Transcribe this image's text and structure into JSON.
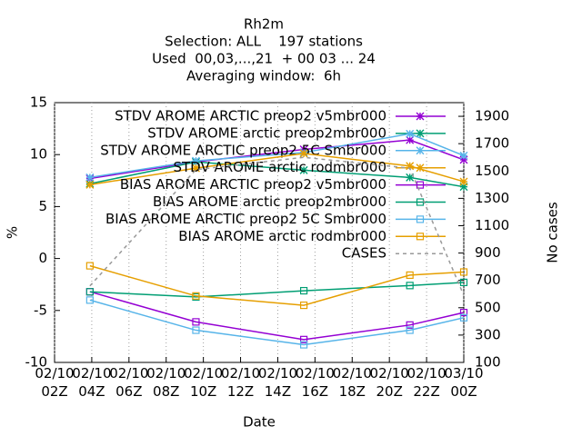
{
  "chart_data": {
    "type": "line",
    "title": [
      "Rh2m",
      "Selection: ALL    197 stations",
      "Used  00,03,...,21  + 00 03 ... 24",
      "Averaging window:  6h"
    ],
    "xlabel": "Date",
    "ylabel": "%",
    "y2label": "No cases",
    "x": [
      3.9,
      9.6,
      15.4,
      21.1,
      24
    ],
    "xlim": [
      2,
      24
    ],
    "xticks": [
      {
        "value": 2,
        "label": "02/10\n02Z"
      },
      {
        "value": 4,
        "label": "02/10\n04Z"
      },
      {
        "value": 6,
        "label": "02/10\n06Z"
      },
      {
        "value": 8,
        "label": "02/10\n08Z"
      },
      {
        "value": 10,
        "label": "02/10\n10Z"
      },
      {
        "value": 12,
        "label": "02/10\n12Z"
      },
      {
        "value": 14,
        "label": "02/10\n14Z"
      },
      {
        "value": 16,
        "label": "02/10\n16Z"
      },
      {
        "value": 18,
        "label": "02/10\n18Z"
      },
      {
        "value": 20,
        "label": "02/10\n20Z"
      },
      {
        "value": 22,
        "label": "02/10\n22Z"
      },
      {
        "value": 24,
        "label": "03/10\n00Z"
      }
    ],
    "ylim": [
      -10,
      15
    ],
    "yticks": [
      -10,
      -5,
      0,
      5,
      10,
      15
    ],
    "y2lim": [
      100,
      2000
    ],
    "y2ticks": [
      100,
      300,
      500,
      700,
      900,
      1100,
      1300,
      1500,
      1700,
      1900
    ],
    "grid": "x",
    "series": [
      {
        "name": "STDV AROME ARCTIC preop2 v5mbr000",
        "color": "#9400d3",
        "marker": "star",
        "values": [
          7.7,
          9.3,
          10.5,
          11.4,
          9.5
        ]
      },
      {
        "name": "STDV AROME arctic preop2mbr000",
        "color": "#009e73",
        "marker": "star",
        "values": [
          7.2,
          9.3,
          8.5,
          7.8,
          6.9
        ]
      },
      {
        "name": "STDV AROME ARCTIC preop2 5C Smbr000",
        "color": "#56b4e9",
        "marker": "star",
        "values": [
          7.8,
          9.4,
          10.2,
          12.0,
          9.9
        ]
      },
      {
        "name": "STDV AROME arctic rodmbr000",
        "color": "#e69f00",
        "marker": "star",
        "values": [
          7.1,
          8.7,
          10.1,
          8.9,
          7.4
        ]
      },
      {
        "name": "BIAS AROME ARCTIC preop2 v5mbr000",
        "color": "#9400d3",
        "marker": "square",
        "values": [
          -3.2,
          -6.1,
          -7.8,
          -6.4,
          -5.2
        ]
      },
      {
        "name": "BIAS AROME arctic preop2mbr000",
        "color": "#009e73",
        "marker": "square",
        "values": [
          -3.2,
          -3.7,
          -3.1,
          -2.6,
          -2.3
        ]
      },
      {
        "name": "BIAS AROME ARCTIC preop2 5C Smbr000",
        "color": "#56b4e9",
        "marker": "square",
        "values": [
          -4.0,
          -6.9,
          -8.3,
          -6.9,
          -5.7
        ]
      },
      {
        "name": "BIAS AROME arctic rodmbr000",
        "color": "#e69f00",
        "marker": "square",
        "values": [
          -0.7,
          -3.6,
          -4.5,
          -1.6,
          -1.3
        ]
      },
      {
        "name": "CASES",
        "color": "#999999",
        "marker": "none",
        "dashed": true,
        "axis": "y2",
        "values": [
          660,
          1510,
          1600,
          1520,
          590
        ]
      }
    ]
  }
}
